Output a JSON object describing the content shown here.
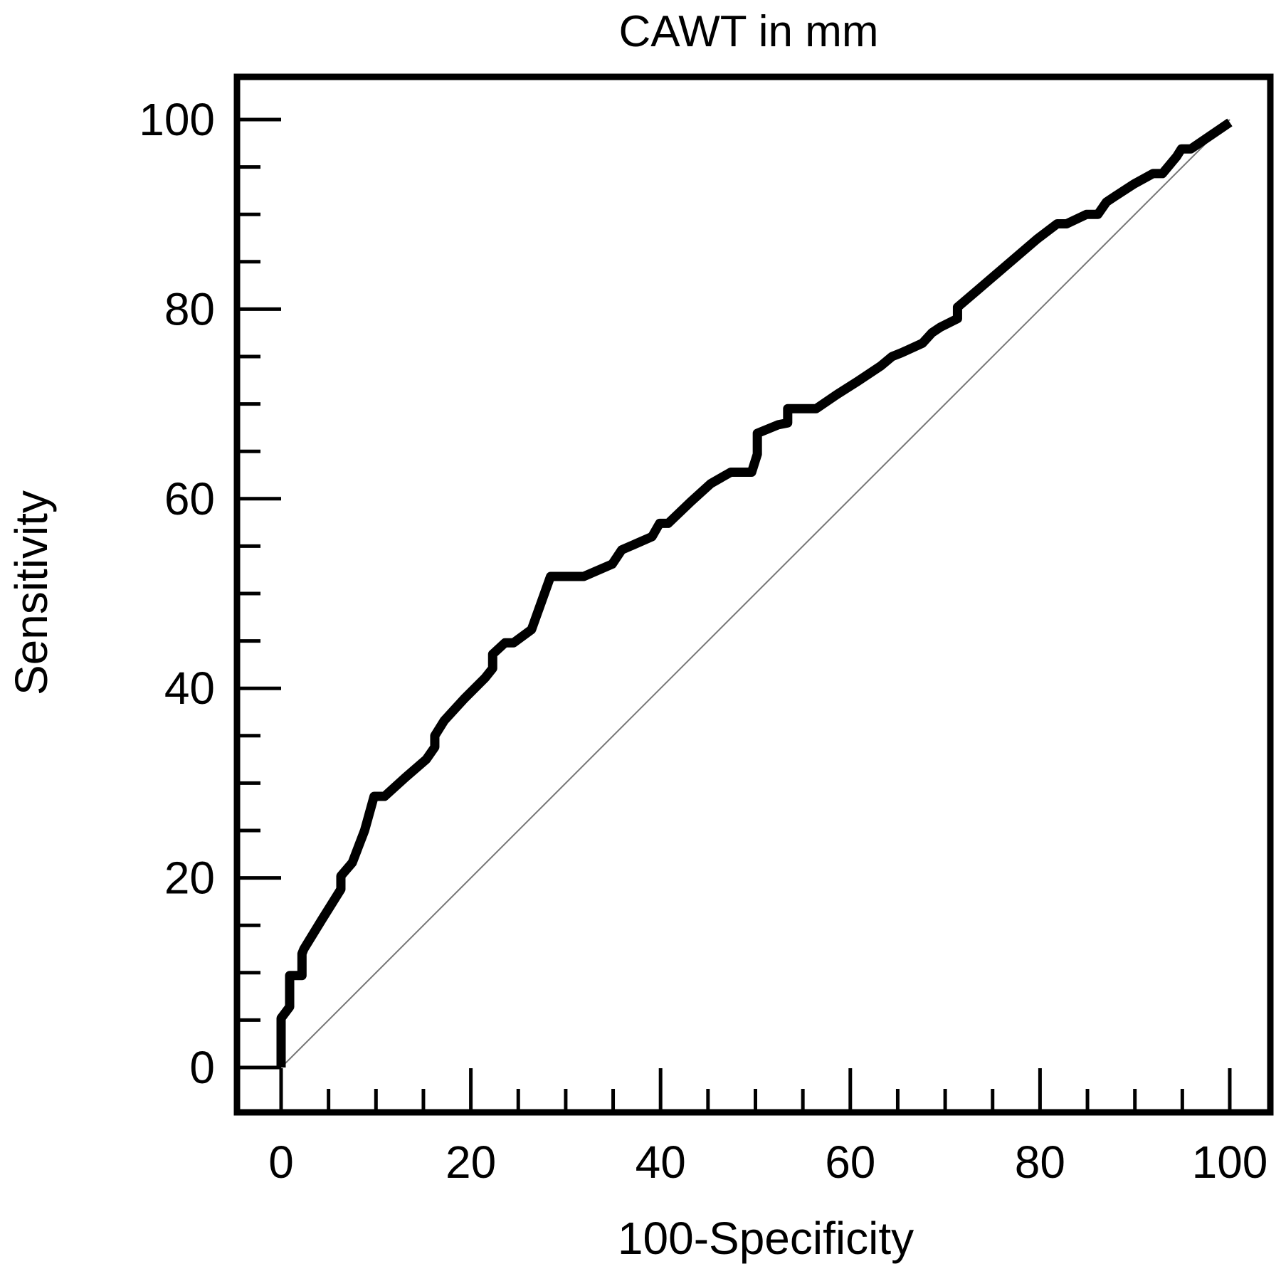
{
  "chart_data": {
    "type": "line",
    "title": "CAWT in mm",
    "xlabel": "100-Specificity",
    "ylabel": "Sensitivity",
    "xlim": [
      0,
      100
    ],
    "ylim": [
      0,
      100
    ],
    "x_ticks": [
      "0",
      "20",
      "40",
      "60",
      "80",
      "100"
    ],
    "y_ticks": [
      "0",
      "20",
      "40",
      "60",
      "80",
      "100"
    ],
    "grid": false,
    "legend": "none",
    "colors": {
      "roc": "#000000",
      "reference": "#777777",
      "frame": "#000000"
    },
    "series": [
      {
        "x": [
          0,
          0,
          0.9,
          0.9,
          2.2,
          2.2,
          2.4,
          4.3,
          6.3,
          6.3,
          7.5,
          8.8,
          9.8,
          10.9,
          13.1,
          15.3,
          16.2,
          16.2,
          17.2,
          19.3,
          21.5,
          22.3,
          22.3,
          23.6,
          24.5,
          26.4,
          28.4,
          31.9,
          34.9,
          35.9,
          39.1,
          39.9,
          40.8,
          43.2,
          45.3,
          47.4,
          49.6,
          50.2,
          50.2,
          52.4,
          53.4,
          53.4,
          56.4,
          58.6,
          60.8,
          63.2,
          64.4,
          65.4,
          67.6,
          68.6,
          69.5,
          71.3,
          71.3,
          73.4,
          75.5,
          77.6,
          79.7,
          81.8,
          82.8,
          84.9,
          86.1,
          87.0,
          87.9,
          89.9,
          91.9,
          92.9,
          94.4,
          94.9,
          95.9,
          100
        ],
        "y": [
          0,
          5.2,
          6.4,
          9.7,
          9.7,
          12.0,
          12.5,
          15.6,
          18.8,
          20.2,
          21.6,
          25.0,
          28.6,
          28.6,
          30.6,
          32.5,
          33.8,
          35.0,
          36.6,
          38.9,
          41.1,
          42.1,
          43.6,
          44.8,
          44.8,
          46.2,
          51.8,
          51.8,
          53.1,
          54.6,
          56.0,
          57.4,
          57.4,
          59.7,
          61.6,
          62.8,
          62.8,
          64.7,
          66.9,
          67.8,
          68.0,
          69.5,
          69.5,
          71.0,
          72.4,
          74.0,
          75.0,
          75.4,
          76.4,
          77.5,
          78.1,
          79.0,
          80.2,
          82.0,
          83.8,
          85.6,
          87.4,
          89.0,
          89.0,
          90.0,
          90.0,
          91.3,
          91.9,
          93.2,
          94.3,
          94.3,
          96.1,
          96.9,
          96.9,
          99.7
        ]
      },
      {
        "x": [
          0,
          100
        ],
        "y": [
          0,
          100
        ]
      }
    ]
  }
}
